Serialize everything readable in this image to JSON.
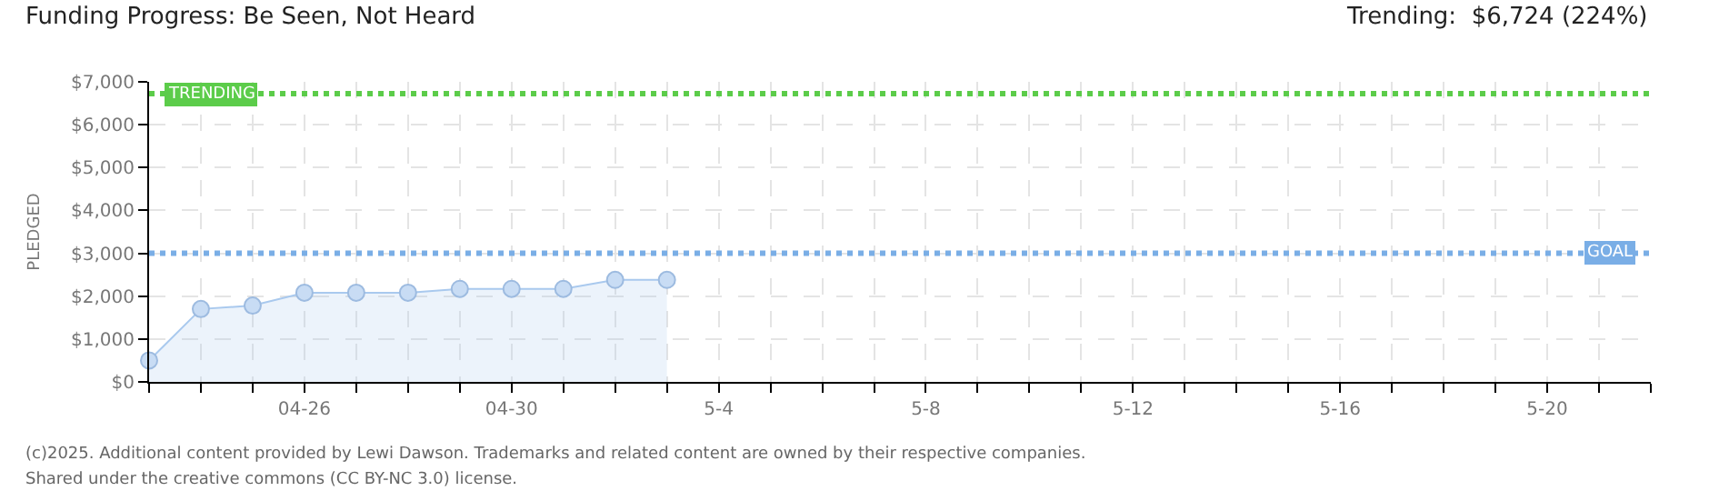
{
  "chart_data": {
    "type": "area",
    "title": "Funding Progress: Be Seen, Not Heard",
    "subtitle": "Trending:  $6,724 (224%)",
    "ylabel": "PLEDGED",
    "x": [
      "--04-23",
      "--04-24",
      "--04-25",
      "--04-26",
      "--04-27",
      "--04-28",
      "--04-29",
      "--04-30",
      "--05-01",
      "--05-02",
      "--05-03"
    ],
    "series": [
      {
        "color": "#a9c9ee",
        "values": [
          500,
          1700,
          1780,
          2080,
          2080,
          2080,
          2170,
          2170,
          2170,
          2380,
          2380
        ]
      }
    ],
    "xlim": [
      "--04-23",
      "--05-22"
    ],
    "xticks": [
      {
        "value": "--04-23",
        "label": null
      },
      {
        "value": "--04-24",
        "label": null
      },
      {
        "value": "--04-25",
        "label": null
      },
      {
        "value": "--04-26",
        "label": "04-26"
      },
      {
        "value": "--04-27",
        "label": null
      },
      {
        "value": "--04-28",
        "label": null
      },
      {
        "value": "--04-29",
        "label": null
      },
      {
        "value": "--04-30",
        "label": "04-30"
      },
      {
        "value": "--05-01",
        "label": null
      },
      {
        "value": "--05-02",
        "label": null
      },
      {
        "value": "--05-03",
        "label": null
      },
      {
        "value": "--05-04",
        "label": "5-4"
      },
      {
        "value": "--05-05",
        "label": null
      },
      {
        "value": "--05-06",
        "label": null
      },
      {
        "value": "--05-07",
        "label": null
      },
      {
        "value": "--05-08",
        "label": "5-8"
      },
      {
        "value": "--05-09",
        "label": null
      },
      {
        "value": "--05-10",
        "label": null
      },
      {
        "value": "--05-11",
        "label": null
      },
      {
        "value": "--05-12",
        "label": "5-12"
      },
      {
        "value": "--05-13",
        "label": null
      },
      {
        "value": "--05-14",
        "label": null
      },
      {
        "value": "--05-15",
        "label": null
      },
      {
        "value": "--05-16",
        "label": "5-16"
      },
      {
        "value": "--05-17",
        "label": null
      },
      {
        "value": "--05-18",
        "label": null
      },
      {
        "value": "--05-19",
        "label": null
      },
      {
        "value": "--05-20",
        "label": "5-20"
      },
      {
        "value": "--05-21",
        "label": null
      },
      {
        "value": "--05-22",
        "label": null
      }
    ],
    "ylim": [
      0,
      7000
    ],
    "yticks": [
      {
        "value": 0,
        "label": "$0"
      },
      {
        "value": 1000,
        "label": "$1,000"
      },
      {
        "value": 2000,
        "label": "$2,000"
      },
      {
        "value": 3000,
        "label": "$3,000"
      },
      {
        "value": 4000,
        "label": "$4,000"
      },
      {
        "value": 5000,
        "label": "$5,000"
      },
      {
        "value": 6000,
        "label": "$6,000"
      },
      {
        "value": 7000,
        "label": "$7,000"
      }
    ],
    "ref_lines": [
      {
        "axis": "y",
        "value": 6724,
        "label": "TRENDING",
        "color": "#5ccc4a",
        "line_style": "dotted"
      },
      {
        "axis": "y",
        "value": 3000,
        "label": "GOAL",
        "color": "#7aaee6",
        "line_style": "dotted"
      }
    ],
    "annotations": [
      "(c)2025. Additional content provided by Lewi Dawson. Trademarks and related content are owned by their respective companies.",
      "Shared under the creative commons (CC BY-NC 3.0) license."
    ],
    "grid": true,
    "marker": "circle"
  }
}
